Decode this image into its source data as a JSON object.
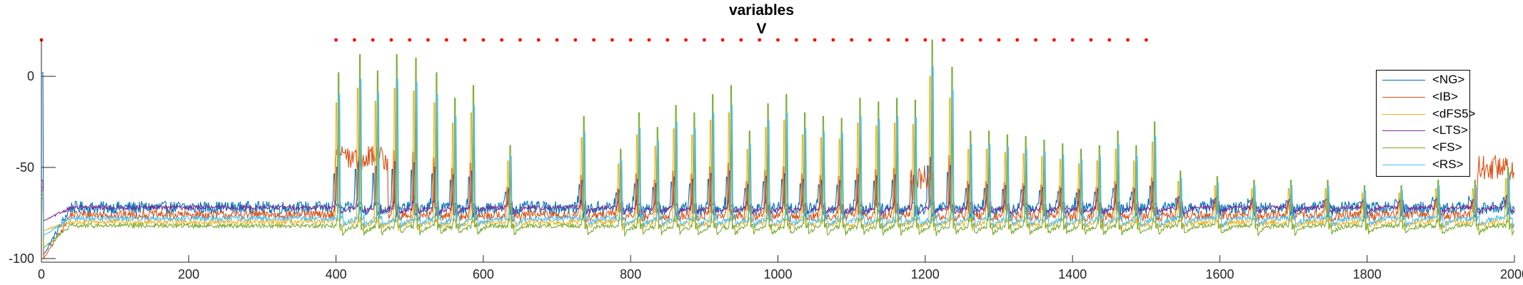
{
  "title": {
    "line1": "variables",
    "line2": "V"
  },
  "chart_data": {
    "type": "line",
    "title": "variables V",
    "xlabel": "",
    "ylabel": "",
    "xlim": [
      0,
      2000
    ],
    "ylim": [
      -102,
      20
    ],
    "xticks": [
      0,
      200,
      400,
      600,
      800,
      1000,
      1200,
      1400,
      1600,
      1800,
      2000
    ],
    "yticks": [
      -100,
      -50,
      0
    ],
    "legend_position": "top-right",
    "grid": false,
    "series": [
      {
        "name": "<NG>",
        "color": "#0072BD",
        "baseline": -72,
        "noise": 3.5,
        "spike_amp": 6,
        "trough": -4,
        "start_dip": -100
      },
      {
        "name": "<IB>",
        "color": "#D95319",
        "baseline": -76,
        "noise": 2.5,
        "spike_amp": 12,
        "trough": -4,
        "start_dip": -102
      },
      {
        "name": "<dFS5>",
        "color": "#EDB120",
        "baseline": -80,
        "noise": 1.5,
        "spike_amp": 28,
        "trough": -6,
        "start_dip": -85
      },
      {
        "name": "<LTS>",
        "color": "#7E2F8E",
        "baseline": -72,
        "noise": 1.2,
        "spike_amp": 8,
        "trough": -5,
        "start_dip": -80
      },
      {
        "name": "<FS>",
        "color": "#77AC30",
        "baseline": -82,
        "noise": 1.2,
        "spike_amp": 40,
        "trough": -8,
        "start_dip": -95
      },
      {
        "name": "<RS>",
        "color": "#4DBEEE",
        "baseline": -78,
        "noise": 1.5,
        "spike_amp": 30,
        "trough": -7,
        "start_dip": -88
      }
    ],
    "burst_times": [
      397,
      426,
      450,
      476,
      502,
      530,
      555,
      580,
      630,
      730,
      780,
      805,
      830,
      855,
      880,
      905,
      930,
      955,
      980,
      1005,
      1030,
      1055,
      1080,
      1105,
      1130,
      1155,
      1180,
      1203,
      1230,
      1255,
      1280,
      1305,
      1330,
      1355,
      1380,
      1405,
      1430,
      1455,
      1480,
      1505,
      1540,
      1590,
      1640,
      1690,
      1740,
      1790,
      1840,
      1890,
      1940,
      1985
    ],
    "peak_values": [
      2,
      12,
      3,
      12,
      10,
      2,
      -12,
      -5,
      -38,
      -22,
      -40,
      -20,
      -28,
      -16,
      -20,
      -10,
      -5,
      -30,
      -15,
      -10,
      -20,
      -22,
      -23,
      -12,
      -14,
      -12,
      -13,
      20,
      5,
      -30,
      -30,
      -32,
      -33,
      -35,
      -37,
      -40,
      -38,
      -30,
      -38,
      -25,
      -52,
      -55,
      -57,
      -57,
      -57,
      -60,
      -60,
      -57,
      -57,
      -50
    ],
    "stimulus_markers": {
      "color": "#FF0000",
      "y": 20,
      "times": [
        0,
        400,
        425,
        450,
        475,
        500,
        525,
        550,
        575,
        600,
        625,
        650,
        675,
        700,
        725,
        750,
        775,
        800,
        825,
        850,
        875,
        900,
        925,
        950,
        975,
        1000,
        1025,
        1050,
        1075,
        1100,
        1125,
        1150,
        1175,
        1200,
        1225,
        1250,
        1275,
        1300,
        1325,
        1350,
        1375,
        1400,
        1425,
        1450,
        1475,
        1500
      ]
    }
  }
}
